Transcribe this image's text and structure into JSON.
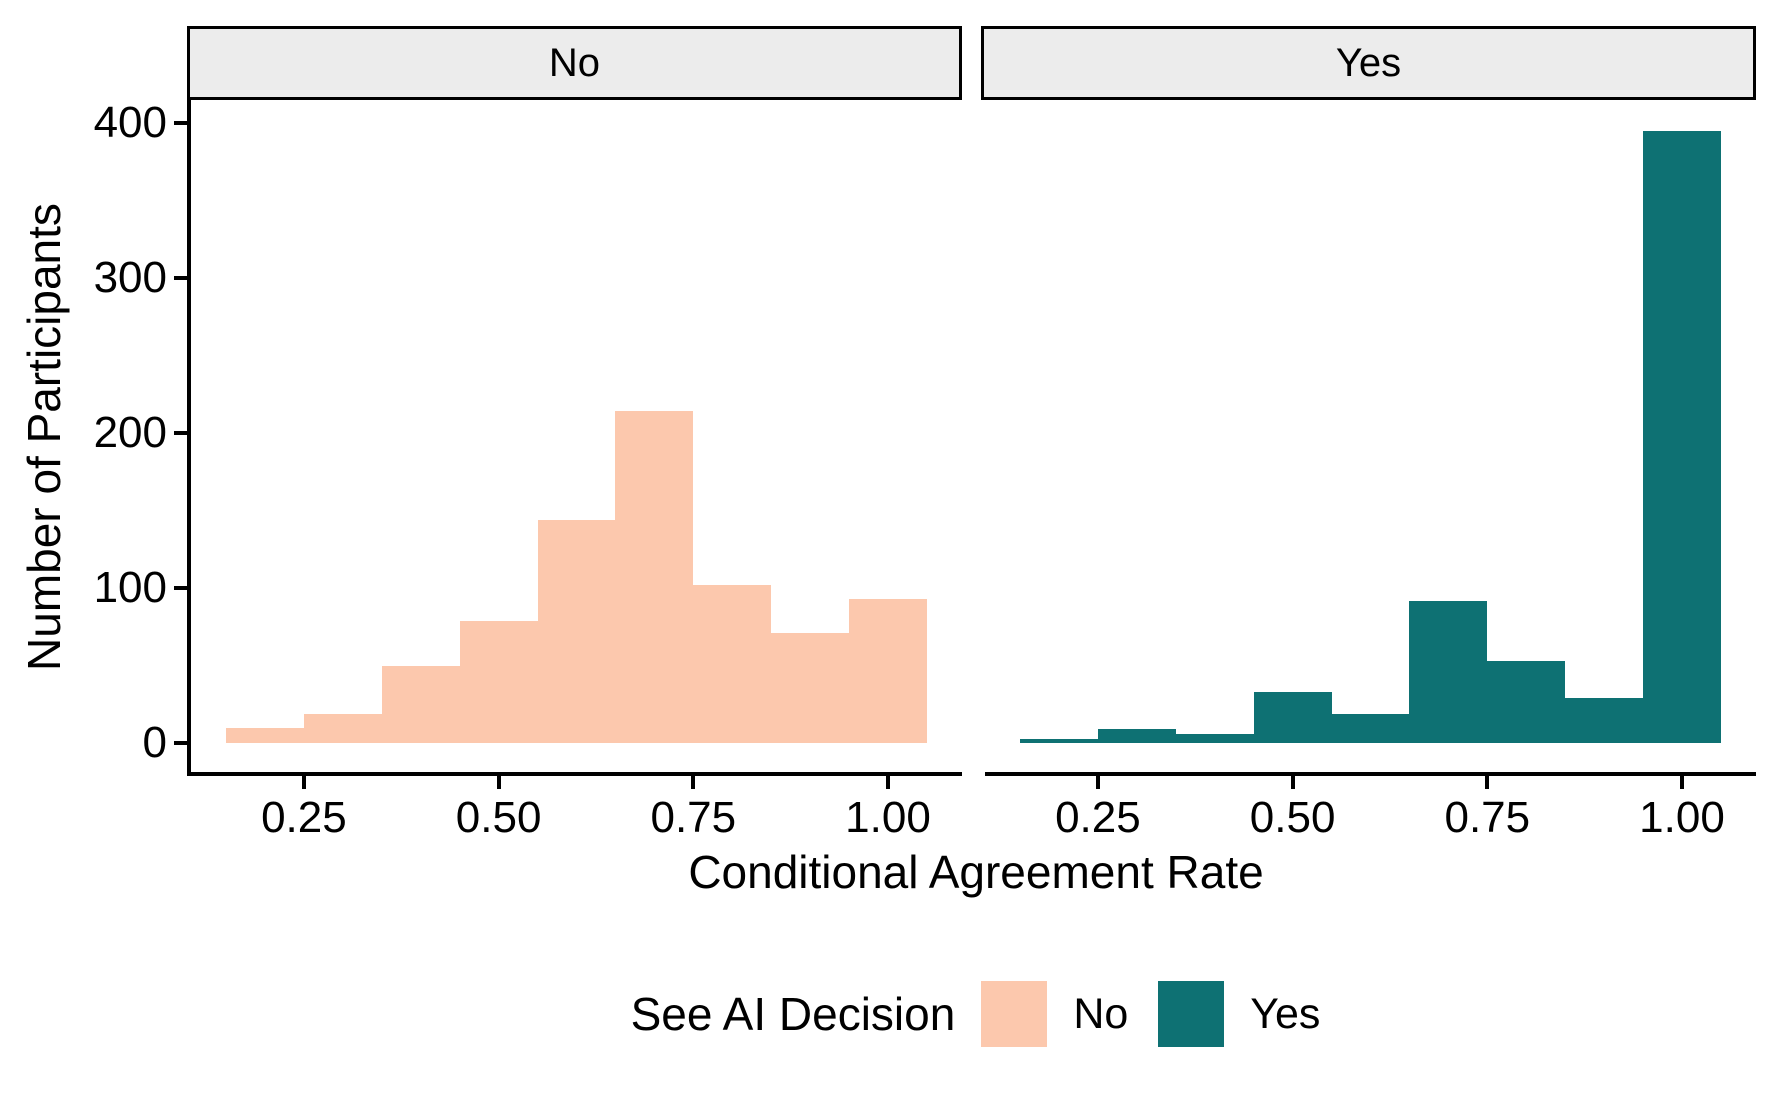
{
  "chart_data": {
    "type": "bar",
    "subtype": "faceted-histogram",
    "facets": [
      {
        "label": "No",
        "values": [
          10,
          19,
          50,
          79,
          144,
          214,
          102,
          71,
          93
        ]
      },
      {
        "label": "Yes",
        "values": [
          3,
          9,
          6,
          33,
          19,
          92,
          53,
          29,
          395
        ]
      }
    ],
    "bin_start": 0.15,
    "bin_width": 0.1,
    "bin_centers": [
      0.2,
      0.3,
      0.4,
      0.5,
      0.6,
      0.7,
      0.8,
      0.9,
      1.0
    ],
    "x_ticks": [
      "0.25",
      "0.50",
      "0.75",
      "1.00"
    ],
    "x_tick_values": [
      0.25,
      0.5,
      0.75,
      1.0
    ],
    "y_ticks": [
      "0",
      "100",
      "200",
      "300",
      "400"
    ],
    "y_tick_values": [
      0,
      100,
      200,
      300,
      400
    ],
    "xlim": [
      0.105,
      1.095
    ],
    "ylim": [
      -19.8,
      414.8
    ],
    "xlabel": "Conditional Agreement Rate",
    "ylabel": "Number of Participants",
    "grid": "off",
    "colors": {
      "no": "#FCC8AD",
      "yes": "#0E7173"
    },
    "strip_background": "#ECECEC",
    "panel_background": "#FFFFFF",
    "axis_color": "#000000"
  },
  "legend": {
    "title": "See AI Decision",
    "position": "bottom",
    "entries": [
      {
        "label": "No",
        "color": "#FCC8AD"
      },
      {
        "label": "Yes",
        "color": "#0E7173"
      }
    ]
  }
}
